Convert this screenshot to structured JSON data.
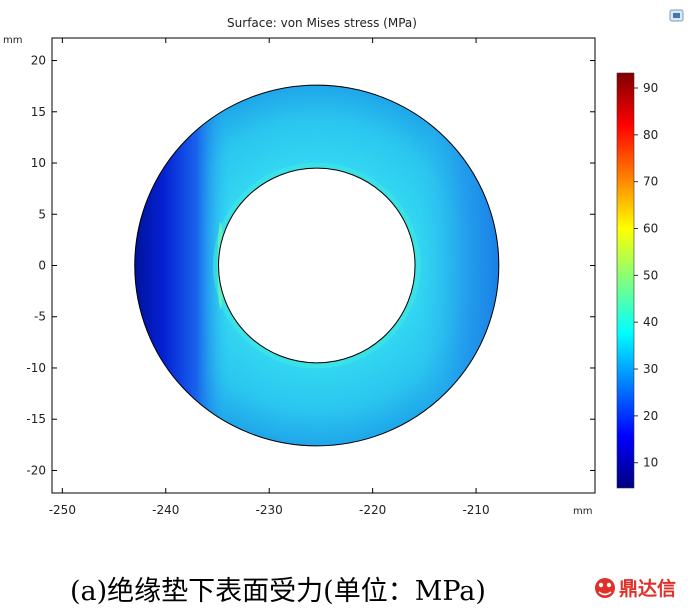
{
  "chart_data": {
    "type": "heatmap",
    "title": "Surface: von Mises stress (MPa)",
    "xunit": "mm",
    "yunit": "mm",
    "xlim": [
      -251,
      -198.5
    ],
    "ylim": [
      -22.2,
      22.2
    ],
    "xticks": [
      -250,
      -240,
      -230,
      -220,
      -210
    ],
    "yticks": [
      20,
      15,
      10,
      5,
      0,
      -5,
      -10,
      -15,
      -20
    ],
    "annulus": {
      "center_x": -225.4,
      "center_y": 0,
      "inner_radius": 9.5,
      "outer_radius": 17.6
    },
    "colorbar": {
      "min": 4.6,
      "max": 93.2,
      "ticks": [
        90,
        80,
        70,
        60,
        50,
        40,
        30,
        20,
        10
      ],
      "colors": [
        "#00007f",
        "#0000ff",
        "#007fff",
        "#00ffff",
        "#7fff7f",
        "#ffff00",
        "#ff7f00",
        "#ff0000",
        "#7f0000"
      ]
    },
    "field_colors": {
      "low": "#0a1ed6",
      "mid": "#1a8fea",
      "base": "#2ad0f0",
      "high": "#40e8e0"
    }
  },
  "caption": "(a)绝缘垫下表面受力(单位：MPa)",
  "watermark": {
    "icon": "dingdaxin-logo-icon",
    "text": "鼎达信"
  },
  "toolbar_icon": "export-image-icon"
}
